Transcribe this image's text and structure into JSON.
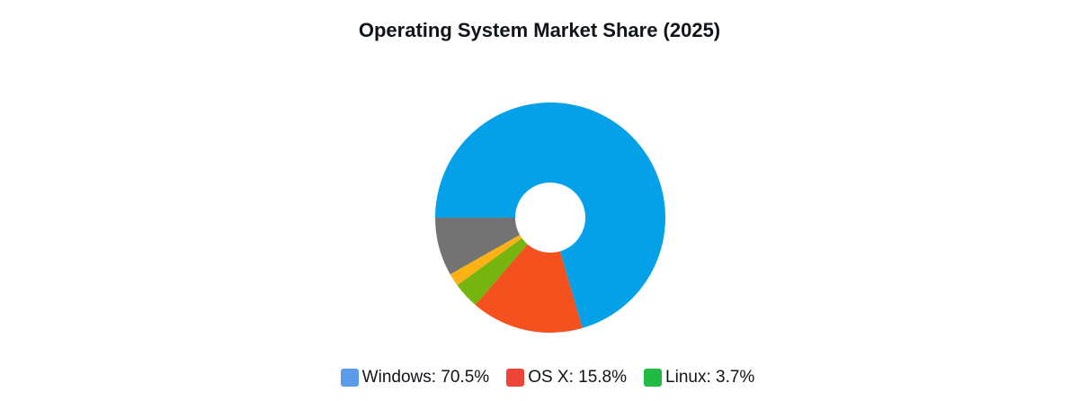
{
  "chart_data": {
    "type": "pie",
    "subtype": "donut",
    "title": "Operating System Market Share (2025)",
    "unit": "%",
    "rotation_deg": 270,
    "direction": "clockwise",
    "inner_radius_ratio": 0.305,
    "legend_position": "bottom",
    "slices": [
      {
        "label": "Windows",
        "percent": 70.5,
        "color": "#05a1e8"
      },
      {
        "label": "OS X",
        "percent": 15.8,
        "color": "#f4511e"
      },
      {
        "label": "Linux",
        "percent": 3.7,
        "color": "#76b410"
      },
      {
        "label": "",
        "percent": 1.8,
        "color": "#fcb115",
        "estimated": true,
        "note": "thin unlabeled slice; value estimated from arc angle"
      },
      {
        "label": "",
        "percent": 8.2,
        "color": "#737373",
        "estimated": true,
        "note": "unlabeled gray slice; value estimated from arc angle"
      }
    ]
  },
  "legend": {
    "items": [
      {
        "label": "Windows: 70.5%",
        "swatch_color": "#5b9bea"
      },
      {
        "label": "OS X: 15.8%",
        "swatch_color": "#ee4438"
      },
      {
        "label": "Linux: 3.7%",
        "swatch_color": "#21ba45"
      }
    ]
  },
  "colors": {
    "background": "#ffffff",
    "title_text": "#111418",
    "legend_text": "#111418"
  }
}
